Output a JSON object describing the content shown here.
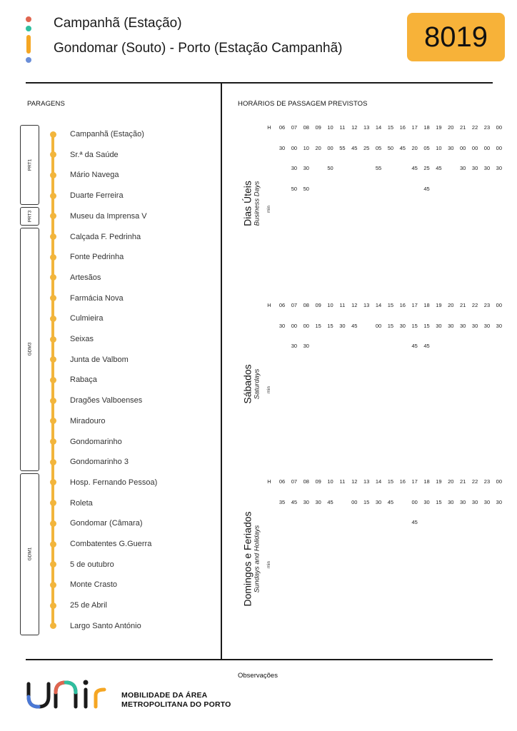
{
  "header": {
    "route_number": "8019",
    "destination_short": "Campanhã (Estação)",
    "destination_full": "Gondomar (Souto) - Porto (Estação Campanhã)"
  },
  "colors": {
    "accent": "#f7b239",
    "route_line": "#f2b53c",
    "legend_red": "#e0654f",
    "legend_teal": "#2fbf9f",
    "legend_orange": "#f5a623",
    "legend_blue": "#6a8ed8"
  },
  "sections": {
    "stops_title": "PARAGENS",
    "schedule_title": "HORÁRIOS DE PASSAGEM PREVISTOS"
  },
  "zones": [
    {
      "label": "PRT1",
      "first_stop": 0,
      "last_stop": 3
    },
    {
      "label": "PRT3",
      "first_stop": 4,
      "last_stop": 4
    },
    {
      "label": "GDM3",
      "first_stop": 5,
      "last_stop": 16
    },
    {
      "label": "GDM1",
      "first_stop": 17,
      "last_stop": 24
    }
  ],
  "stops": [
    "Campanhã (Estação)",
    "Sr.ª da Saúde",
    "Mário Navega",
    "Duarte Ferreira",
    "Museu da Imprensa V",
    "Calçada F. Pedrinha",
    "Fonte Pedrinha",
    "Artesãos",
    "Farmácia Nova",
    "Culmieira",
    "Seixas",
    "Junta de Valbom",
    "Rabaça",
    "Dragões Valboenses",
    "Miradouro",
    "Gondomarinho",
    "Gondomarinho 3",
    "Hosp. Fernando Pessoa)",
    "Roleta",
    "Gondomar (Câmara)",
    "Combatentes G.Guerra",
    "5 de outubro",
    "Monte Crasto",
    "25 de Abril",
    "Largo Santo António"
  ],
  "schedule": {
    "hour_label": "H",
    "min_label": "min",
    "hours": [
      "06",
      "07",
      "08",
      "09",
      "10",
      "11",
      "12",
      "13",
      "14",
      "15",
      "16",
      "17",
      "18",
      "19",
      "20",
      "21",
      "22",
      "23",
      "00"
    ],
    "days": [
      {
        "name": "Dias Úteis",
        "subtitle": "Business Days",
        "rows": [
          [
            "30",
            "00",
            "10",
            "20",
            "00",
            "55",
            "45",
            "25",
            "05",
            "50",
            "45",
            "20",
            "05",
            "10",
            "30",
            "00",
            "00",
            "00",
            "00"
          ],
          [
            "",
            "30",
            "30",
            "",
            "50",
            "",
            "",
            "",
            "55",
            "",
            "",
            "45",
            "25",
            "45",
            "",
            "30",
            "30",
            "30",
            "30"
          ],
          [
            "",
            "50",
            "50",
            "",
            "",
            "",
            "",
            "",
            "",
            "",
            "",
            "",
            "45",
            "",
            "",
            "",
            "",
            "",
            ""
          ]
        ]
      },
      {
        "name": "Sábados",
        "subtitle": "Saturdays",
        "rows": [
          [
            "30",
            "00",
            "00",
            "15",
            "15",
            "30",
            "45",
            "",
            "00",
            "15",
            "30",
            "15",
            "15",
            "30",
            "30",
            "30",
            "30",
            "30",
            "30"
          ],
          [
            "",
            "30",
            "30",
            "",
            "",
            "",
            "",
            "",
            "",
            "",
            "",
            "45",
            "45",
            "",
            "",
            "",
            "",
            "",
            ""
          ]
        ]
      },
      {
        "name": "Domingos e Feriados",
        "subtitle": "Sundays and Holidays",
        "rows": [
          [
            "35",
            "45",
            "30",
            "30",
            "45",
            "",
            "00",
            "15",
            "30",
            "45",
            "",
            "00",
            "30",
            "15",
            "30",
            "30",
            "30",
            "30",
            "30"
          ],
          [
            "",
            "",
            "",
            "",
            "",
            "",
            "",
            "",
            "",
            "",
            "",
            "45",
            "",
            "",
            "",
            "",
            "",
            "",
            ""
          ]
        ]
      }
    ]
  },
  "footer": {
    "observations": "Observações",
    "brand_line1": "MOBILIDADE DA ÁREA",
    "brand_line2": "METROPOLITANA DO PORTO"
  }
}
